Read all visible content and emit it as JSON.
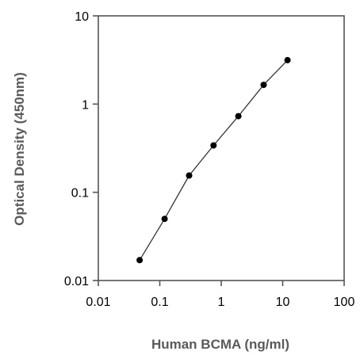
{
  "chart_data": {
    "type": "scatter",
    "title": "",
    "xlabel": "Human BCMA (ng/ml)",
    "ylabel": "Optical Density (450nm)",
    "x_scale": "log",
    "y_scale": "log",
    "xlim": [
      0.01,
      100
    ],
    "ylim": [
      0.01,
      10
    ],
    "x_ticks": [
      "0.01",
      "0.1",
      "1",
      "10",
      "100"
    ],
    "y_ticks": [
      "0.01",
      "0.1",
      "1",
      "10"
    ],
    "grid": false,
    "legend": "none",
    "series": [
      {
        "x": [
          0.047,
          0.12,
          0.3,
          0.75,
          1.9,
          4.9,
          12
        ],
        "y": [
          0.017,
          0.05,
          0.155,
          0.34,
          0.73,
          1.65,
          3.15
        ],
        "connected": true
      }
    ],
    "colors": {
      "marker": "#000000",
      "line": "#333333",
      "axis": "#555555"
    }
  }
}
